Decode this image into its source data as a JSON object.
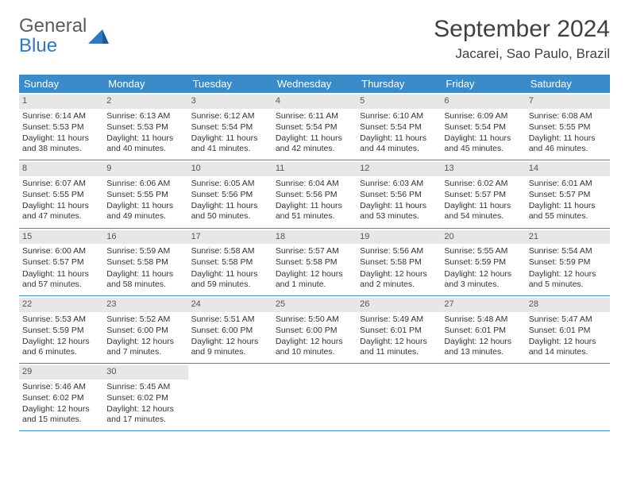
{
  "logo": {
    "word1": "General",
    "word2": "Blue"
  },
  "header": {
    "month": "September 2024",
    "location": "Jacarei, Sao Paulo, Brazil"
  },
  "colors": {
    "header_bg": "#3b8bc9",
    "daynum_bg": "#e7e7e7",
    "divider": "#3b8bc9",
    "text": "#333333",
    "logo_gray": "#5a5a5a",
    "logo_blue": "#2f78c2"
  },
  "typography": {
    "month_fontsize": 30,
    "location_fontsize": 17,
    "dayheader_fontsize": 13,
    "cell_fontsize": 10.5,
    "daynum_fontsize": 11
  },
  "day_names": [
    "Sunday",
    "Monday",
    "Tuesday",
    "Wednesday",
    "Thursday",
    "Friday",
    "Saturday"
  ],
  "weeks": [
    [
      {
        "d": "1",
        "sr": "6:14 AM",
        "ss": "5:53 PM",
        "dl": "11 hours and 38 minutes."
      },
      {
        "d": "2",
        "sr": "6:13 AM",
        "ss": "5:53 PM",
        "dl": "11 hours and 40 minutes."
      },
      {
        "d": "3",
        "sr": "6:12 AM",
        "ss": "5:54 PM",
        "dl": "11 hours and 41 minutes."
      },
      {
        "d": "4",
        "sr": "6:11 AM",
        "ss": "5:54 PM",
        "dl": "11 hours and 42 minutes."
      },
      {
        "d": "5",
        "sr": "6:10 AM",
        "ss": "5:54 PM",
        "dl": "11 hours and 44 minutes."
      },
      {
        "d": "6",
        "sr": "6:09 AM",
        "ss": "5:54 PM",
        "dl": "11 hours and 45 minutes."
      },
      {
        "d": "7",
        "sr": "6:08 AM",
        "ss": "5:55 PM",
        "dl": "11 hours and 46 minutes."
      }
    ],
    [
      {
        "d": "8",
        "sr": "6:07 AM",
        "ss": "5:55 PM",
        "dl": "11 hours and 47 minutes."
      },
      {
        "d": "9",
        "sr": "6:06 AM",
        "ss": "5:55 PM",
        "dl": "11 hours and 49 minutes."
      },
      {
        "d": "10",
        "sr": "6:05 AM",
        "ss": "5:56 PM",
        "dl": "11 hours and 50 minutes."
      },
      {
        "d": "11",
        "sr": "6:04 AM",
        "ss": "5:56 PM",
        "dl": "11 hours and 51 minutes."
      },
      {
        "d": "12",
        "sr": "6:03 AM",
        "ss": "5:56 PM",
        "dl": "11 hours and 53 minutes."
      },
      {
        "d": "13",
        "sr": "6:02 AM",
        "ss": "5:57 PM",
        "dl": "11 hours and 54 minutes."
      },
      {
        "d": "14",
        "sr": "6:01 AM",
        "ss": "5:57 PM",
        "dl": "11 hours and 55 minutes."
      }
    ],
    [
      {
        "d": "15",
        "sr": "6:00 AM",
        "ss": "5:57 PM",
        "dl": "11 hours and 57 minutes."
      },
      {
        "d": "16",
        "sr": "5:59 AM",
        "ss": "5:58 PM",
        "dl": "11 hours and 58 minutes."
      },
      {
        "d": "17",
        "sr": "5:58 AM",
        "ss": "5:58 PM",
        "dl": "11 hours and 59 minutes."
      },
      {
        "d": "18",
        "sr": "5:57 AM",
        "ss": "5:58 PM",
        "dl": "12 hours and 1 minute."
      },
      {
        "d": "19",
        "sr": "5:56 AM",
        "ss": "5:58 PM",
        "dl": "12 hours and 2 minutes."
      },
      {
        "d": "20",
        "sr": "5:55 AM",
        "ss": "5:59 PM",
        "dl": "12 hours and 3 minutes."
      },
      {
        "d": "21",
        "sr": "5:54 AM",
        "ss": "5:59 PM",
        "dl": "12 hours and 5 minutes."
      }
    ],
    [
      {
        "d": "22",
        "sr": "5:53 AM",
        "ss": "5:59 PM",
        "dl": "12 hours and 6 minutes."
      },
      {
        "d": "23",
        "sr": "5:52 AM",
        "ss": "6:00 PM",
        "dl": "12 hours and 7 minutes."
      },
      {
        "d": "24",
        "sr": "5:51 AM",
        "ss": "6:00 PM",
        "dl": "12 hours and 9 minutes."
      },
      {
        "d": "25",
        "sr": "5:50 AM",
        "ss": "6:00 PM",
        "dl": "12 hours and 10 minutes."
      },
      {
        "d": "26",
        "sr": "5:49 AM",
        "ss": "6:01 PM",
        "dl": "12 hours and 11 minutes."
      },
      {
        "d": "27",
        "sr": "5:48 AM",
        "ss": "6:01 PM",
        "dl": "12 hours and 13 minutes."
      },
      {
        "d": "28",
        "sr": "5:47 AM",
        "ss": "6:01 PM",
        "dl": "12 hours and 14 minutes."
      }
    ],
    [
      {
        "d": "29",
        "sr": "5:46 AM",
        "ss": "6:02 PM",
        "dl": "12 hours and 15 minutes."
      },
      {
        "d": "30",
        "sr": "5:45 AM",
        "ss": "6:02 PM",
        "dl": "12 hours and 17 minutes."
      },
      null,
      null,
      null,
      null,
      null
    ]
  ],
  "labels": {
    "sunrise": "Sunrise: ",
    "sunset": "Sunset: ",
    "daylight": "Daylight: "
  }
}
